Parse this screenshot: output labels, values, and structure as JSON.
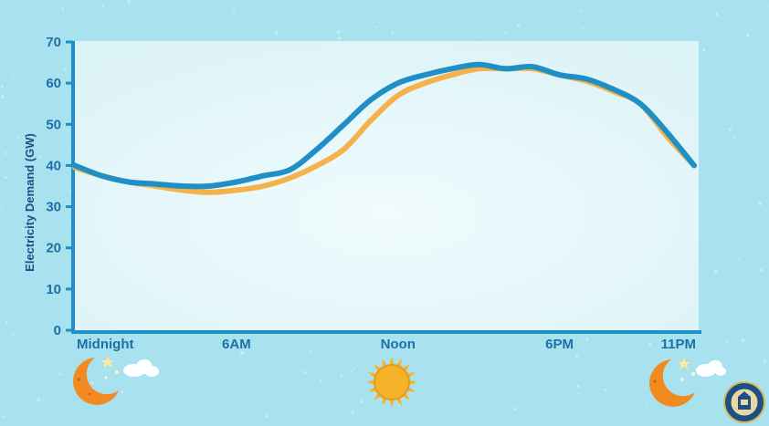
{
  "chart_data": {
    "type": "line",
    "title": "",
    "ylabel": "Electricity Demand (GW)",
    "xlabel": "",
    "ylim": [
      0,
      70
    ],
    "yticks": [
      0,
      10,
      20,
      30,
      40,
      50,
      60,
      70
    ],
    "xlim": [
      0,
      23
    ],
    "xticks": [
      {
        "label": "Midnight",
        "hour": 0
      },
      {
        "label": "6AM",
        "hour": 6
      },
      {
        "label": "Noon",
        "hour": 12
      },
      {
        "label": "6PM",
        "hour": 18
      },
      {
        "label": "11PM",
        "hour": 23
      }
    ],
    "grid": false,
    "series": [
      {
        "color": "#f5b24a",
        "x": [
          0,
          1,
          2,
          3,
          4,
          5,
          6,
          7,
          8,
          9,
          10,
          11,
          12,
          13,
          14,
          15,
          16,
          17,
          18,
          19,
          20,
          21,
          22,
          23
        ],
        "values": [
          39.5,
          37.5,
          36,
          35,
          34,
          33.5,
          34,
          35,
          37,
          40,
          44,
          51,
          57,
          60,
          62,
          63.5,
          63.5,
          63.5,
          62,
          60.5,
          58,
          55,
          47,
          40
        ]
      },
      {
        "color": "#1f8fc6",
        "x": [
          0,
          1,
          2,
          3,
          4,
          5,
          6,
          7,
          8,
          9,
          10,
          11,
          12,
          13,
          14,
          15,
          16,
          17,
          18,
          19,
          20,
          21,
          22,
          23
        ],
        "values": [
          40,
          37.5,
          36,
          35.5,
          35,
          35,
          36,
          37.5,
          39,
          44,
          50,
          56,
          60,
          62,
          63.5,
          64.5,
          63.5,
          64,
          62,
          61,
          58.5,
          55,
          48,
          40
        ]
      }
    ]
  },
  "decor": {
    "icons": [
      "moon-stars-cloud-icon",
      "sun-icon",
      "moon-stars-cloud-icon",
      "energy-department-seal-icon"
    ],
    "colors": {
      "background": "#a8e2ee",
      "plot": "#e2f7fb",
      "axis": "#1f8fc6",
      "sun": "#f6b32a",
      "moon": "#f28a1f"
    }
  }
}
